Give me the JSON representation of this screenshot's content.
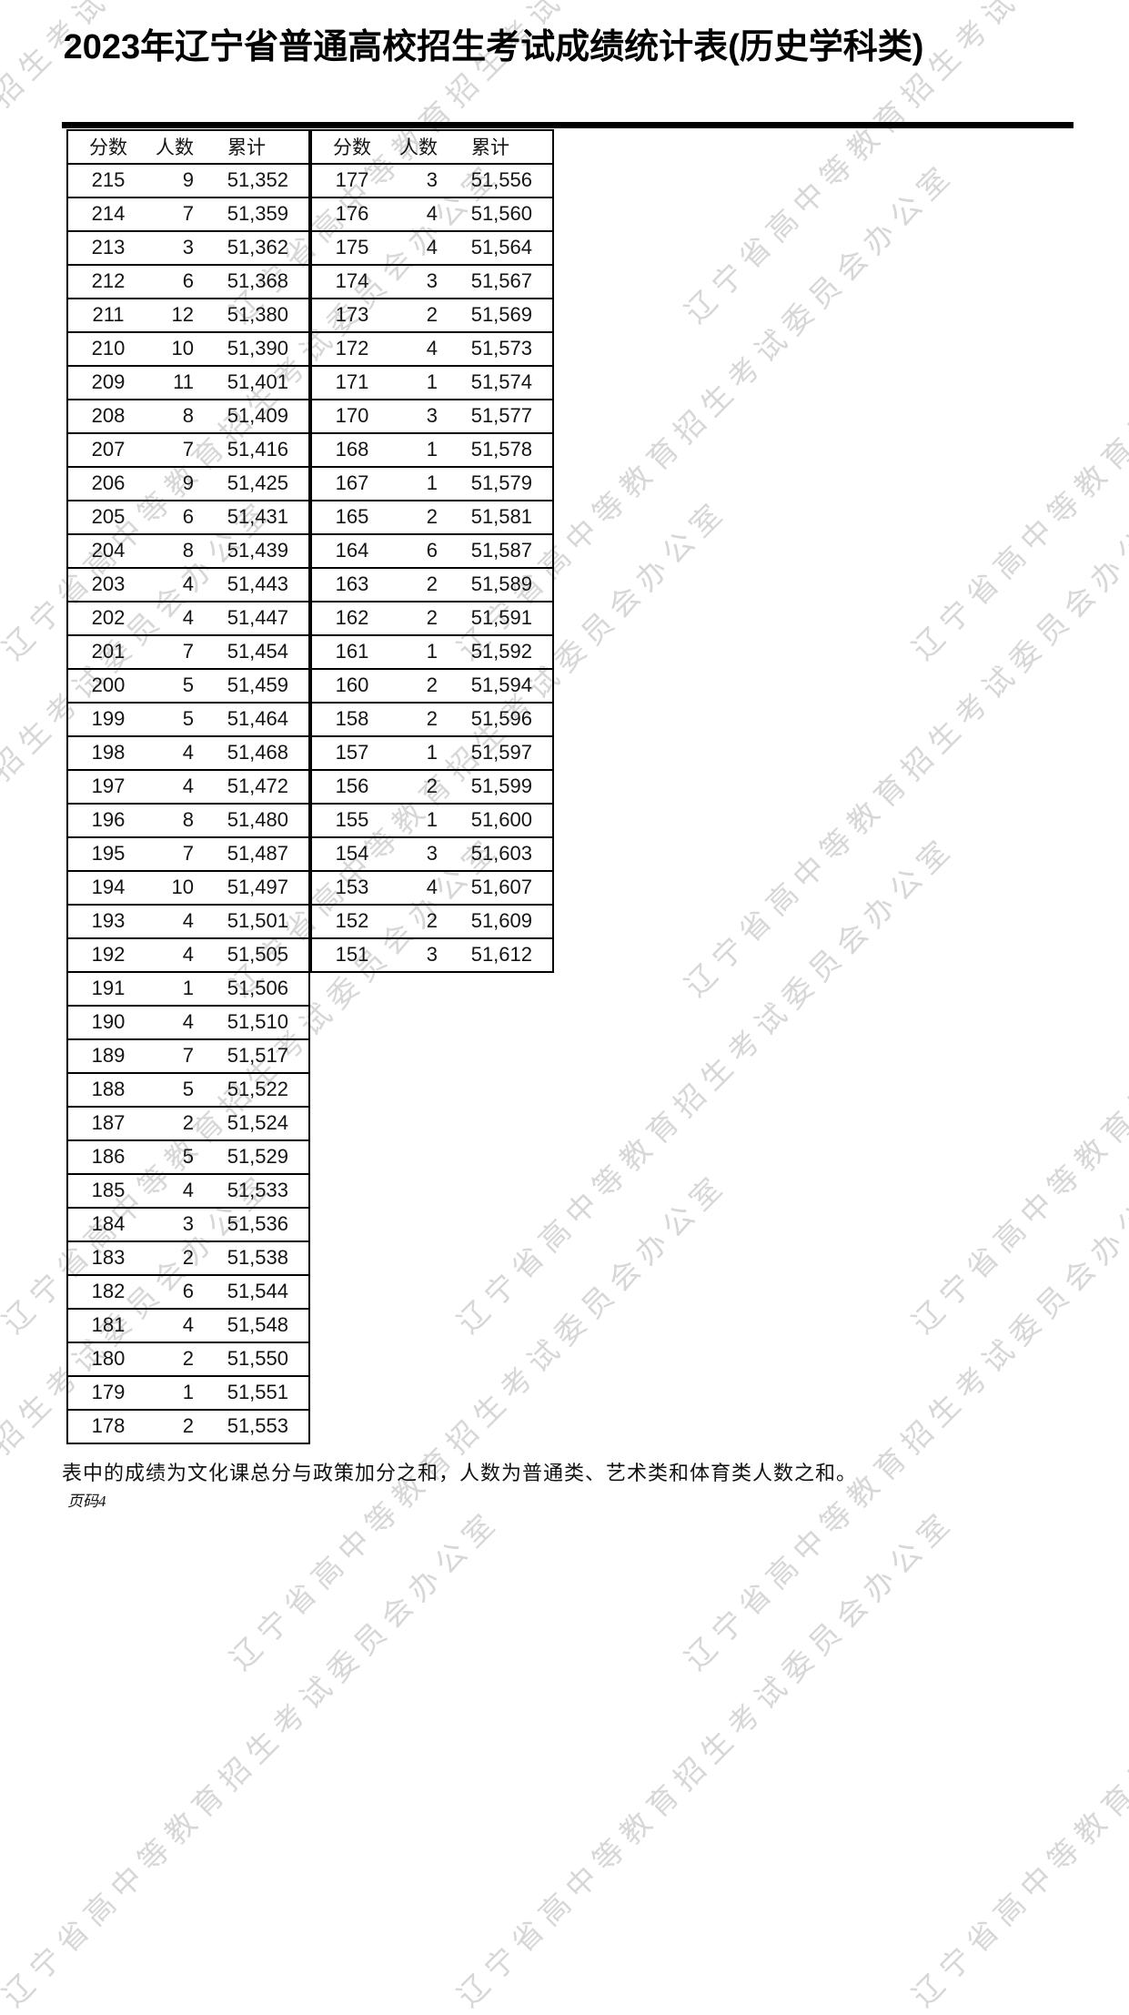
{
  "title": "2023年辽宁省普通高校招生考试成绩统计表(历史学科类)",
  "table": {
    "headers": [
      "分数",
      "人数",
      "累计"
    ],
    "left_rows": [
      [
        "215",
        "9",
        "51,352"
      ],
      [
        "214",
        "7",
        "51,359"
      ],
      [
        "213",
        "3",
        "51,362"
      ],
      [
        "212",
        "6",
        "51,368"
      ],
      [
        "211",
        "12",
        "51,380"
      ],
      [
        "210",
        "10",
        "51,390"
      ],
      [
        "209",
        "11",
        "51,401"
      ],
      [
        "208",
        "8",
        "51,409"
      ],
      [
        "207",
        "7",
        "51,416"
      ],
      [
        "206",
        "9",
        "51,425"
      ],
      [
        "205",
        "6",
        "51,431"
      ],
      [
        "204",
        "8",
        "51,439"
      ],
      [
        "203",
        "4",
        "51,443"
      ],
      [
        "202",
        "4",
        "51,447"
      ],
      [
        "201",
        "7",
        "51,454"
      ],
      [
        "200",
        "5",
        "51,459"
      ],
      [
        "199",
        "5",
        "51,464"
      ],
      [
        "198",
        "4",
        "51,468"
      ],
      [
        "197",
        "4",
        "51,472"
      ],
      [
        "196",
        "8",
        "51,480"
      ],
      [
        "195",
        "7",
        "51,487"
      ],
      [
        "194",
        "10",
        "51,497"
      ],
      [
        "193",
        "4",
        "51,501"
      ],
      [
        "192",
        "4",
        "51,505"
      ],
      [
        "191",
        "1",
        "51,506"
      ],
      [
        "190",
        "4",
        "51,510"
      ],
      [
        "189",
        "7",
        "51,517"
      ],
      [
        "188",
        "5",
        "51,522"
      ],
      [
        "187",
        "2",
        "51,524"
      ],
      [
        "186",
        "5",
        "51,529"
      ],
      [
        "185",
        "4",
        "51,533"
      ],
      [
        "184",
        "3",
        "51,536"
      ],
      [
        "183",
        "2",
        "51,538"
      ],
      [
        "182",
        "6",
        "51,544"
      ],
      [
        "181",
        "4",
        "51,548"
      ],
      [
        "180",
        "2",
        "51,550"
      ],
      [
        "179",
        "1",
        "51,551"
      ],
      [
        "178",
        "2",
        "51,553"
      ]
    ],
    "right_rows": [
      [
        "177",
        "3",
        "51,556"
      ],
      [
        "176",
        "4",
        "51,560"
      ],
      [
        "175",
        "4",
        "51,564"
      ],
      [
        "174",
        "3",
        "51,567"
      ],
      [
        "173",
        "2",
        "51,569"
      ],
      [
        "172",
        "4",
        "51,573"
      ],
      [
        "171",
        "1",
        "51,574"
      ],
      [
        "170",
        "3",
        "51,577"
      ],
      [
        "168",
        "1",
        "51,578"
      ],
      [
        "167",
        "1",
        "51,579"
      ],
      [
        "165",
        "2",
        "51,581"
      ],
      [
        "164",
        "6",
        "51,587"
      ],
      [
        "163",
        "2",
        "51,589"
      ],
      [
        "162",
        "2",
        "51,591"
      ],
      [
        "161",
        "1",
        "51,592"
      ],
      [
        "160",
        "2",
        "51,594"
      ],
      [
        "158",
        "2",
        "51,596"
      ],
      [
        "157",
        "1",
        "51,597"
      ],
      [
        "156",
        "2",
        "51,599"
      ],
      [
        "155",
        "1",
        "51,600"
      ],
      [
        "154",
        "3",
        "51,603"
      ],
      [
        "153",
        "4",
        "51,607"
      ],
      [
        "152",
        "2",
        "51,609"
      ],
      [
        "151",
        "3",
        "51,612"
      ]
    ]
  },
  "footnote": "表中的成绩为文化课总分与政策加分之和，人数为普通类、艺术类和体育类人数之和。",
  "page_label": "页码4",
  "watermark": {
    "text": "辽宁省高中等教育招生考试委员会办公室",
    "color": "#d7d7d7"
  }
}
